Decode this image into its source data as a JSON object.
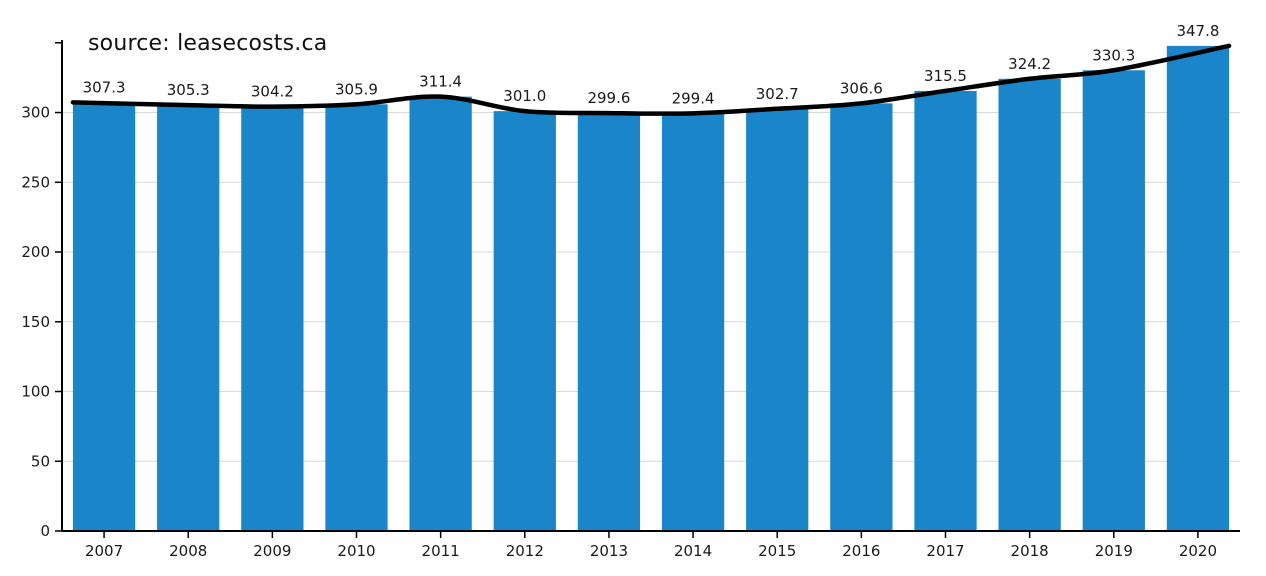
{
  "source_label": "source: leasecosts.ca",
  "chart_data": {
    "type": "bar",
    "overlay": "line",
    "title": "",
    "xlabel": "",
    "ylabel": "",
    "categories": [
      "2007",
      "2008",
      "2009",
      "2010",
      "2011",
      "2012",
      "2013",
      "2014",
      "2015",
      "2016",
      "2017",
      "2018",
      "2019",
      "2020"
    ],
    "values": [
      307.3,
      305.3,
      304.2,
      305.9,
      311.4,
      301.0,
      299.6,
      299.4,
      302.7,
      306.6,
      315.5,
      324.2,
      330.3,
      347.8
    ],
    "value_labels": [
      "307.3",
      "305.3",
      "304.2",
      "305.9",
      "311.4",
      "301.0",
      "299.6",
      "299.4",
      "302.7",
      "306.6",
      "315.5",
      "324.2",
      "330.3",
      "347.8"
    ],
    "series": [
      {
        "name": "bars",
        "values": [
          307.3,
          305.3,
          304.2,
          305.9,
          311.4,
          301.0,
          299.6,
          299.4,
          302.7,
          306.6,
          315.5,
          324.2,
          330.3,
          347.8
        ]
      },
      {
        "name": "trend-line",
        "values": [
          307.3,
          305.3,
          304.2,
          305.9,
          311.4,
          301.0,
          299.6,
          299.4,
          302.7,
          306.6,
          315.5,
          324.2,
          330.3,
          347.8
        ]
      }
    ],
    "yticks": [
      0,
      50,
      100,
      150,
      200,
      250,
      300
    ],
    "ylim": [
      0,
      352
    ],
    "grid": true,
    "legend": "none",
    "bar_color": "#1a85c8",
    "line_color": "#000000",
    "grid_color": "#d9d9d9",
    "axis_color": "#000000",
    "text_color": "#1a1a1a"
  }
}
